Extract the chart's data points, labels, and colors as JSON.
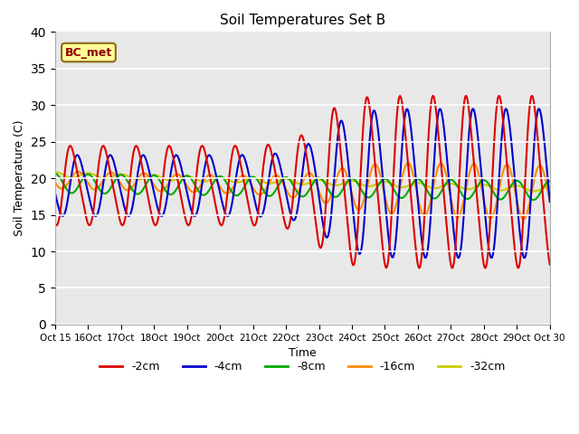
{
  "title": "Soil Temperatures Set B",
  "xlabel": "Time",
  "ylabel": "Soil Temperature (C)",
  "ylim": [
    0,
    40
  ],
  "yticks": [
    0,
    5,
    10,
    15,
    20,
    25,
    30,
    35,
    40
  ],
  "x_tick_labels": [
    "Oct 15",
    "16Oct",
    "17Oct",
    "18Oct",
    "19Oct",
    "20Oct",
    "21Oct",
    "22Oct",
    "23Oct",
    "24Oct",
    "25Oct",
    "26Oct",
    "27Oct",
    "28Oct",
    "29Oct",
    "Oct 30"
  ],
  "annotation_text": "BC_met",
  "annotation_bg": "#FFFF99",
  "annotation_border": "#8B6914",
  "colors": {
    "-2cm": "#DD0000",
    "-4cm": "#0000CC",
    "-8cm": "#00AA00",
    "-16cm": "#FF8C00",
    "-32cm": "#CCCC00"
  },
  "background_color": "#E8E8E8",
  "figure_bg": "#FFFFFF"
}
